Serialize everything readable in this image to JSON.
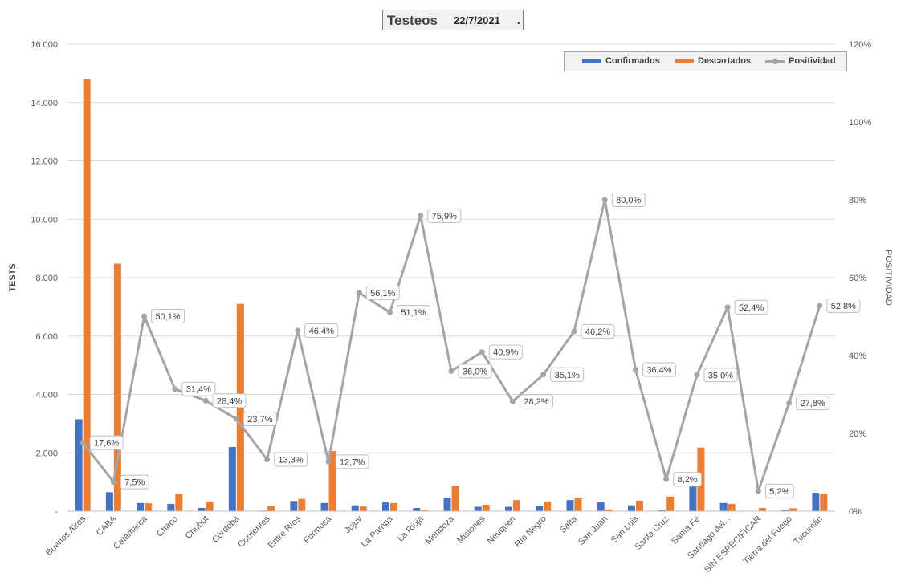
{
  "title": {
    "main": "Testeos",
    "date": "22/7/2021",
    "dot": "."
  },
  "legend": {
    "s1": "Confirmados",
    "s2": "Descartados",
    "s3": "Positividad"
  },
  "colors": {
    "confirmados": "#4472c4",
    "descartados": "#ed7d31",
    "positividad": "#a5a5a5"
  },
  "chart_data": {
    "type": "bar",
    "title": "Testeos 22/7/2021",
    "ylabel": "TESTS",
    "y2label": "POSITIVIDAD",
    "ylim": [
      0,
      16000
    ],
    "y2lim": [
      0,
      120
    ],
    "y_ticks": [
      "-",
      "2.000",
      "4.000",
      "6.000",
      "8.000",
      "10.000",
      "12.000",
      "14.000",
      "16.000"
    ],
    "y2_ticks": [
      "0%",
      "20%",
      "40%",
      "60%",
      "80%",
      "100%",
      "120%"
    ],
    "grid": true,
    "legend_position": "top-right",
    "categories": [
      "Buenos Aires",
      "CABA",
      "Catamarca",
      "Chaco",
      "Chubut",
      "Córdoba",
      "Corrientes",
      "Entre Ríos",
      "Formosa",
      "Jujuy",
      "La Pampa",
      "La Rioja",
      "Mendoza",
      "Misiones",
      "Neuquén",
      "Río Negro",
      "Salta",
      "San Juan",
      "San Luis",
      "Santa Cruz",
      "Santa Fe",
      "Santiago del...",
      "SIN ESPECIFICAR",
      "Tierra del Fuego",
      "Tucumán"
    ],
    "series": [
      {
        "name": "Confirmados",
        "axis": "left",
        "values": [
          3150,
          650,
          280,
          250,
          110,
          2200,
          20,
          350,
          280,
          200,
          300,
          110,
          470,
          150,
          150,
          170,
          380,
          300,
          200,
          40,
          900,
          280,
          10,
          40,
          630
        ]
      },
      {
        "name": "Descartados",
        "axis": "left",
        "values": [
          14800,
          8480,
          270,
          580,
          330,
          7100,
          170,
          420,
          2060,
          160,
          280,
          40,
          870,
          220,
          380,
          330,
          440,
          60,
          360,
          500,
          2180,
          250,
          110,
          100,
          580
        ]
      },
      {
        "name": "Positividad",
        "axis": "right",
        "type": "line",
        "values": [
          17.6,
          7.5,
          50.1,
          31.4,
          28.4,
          23.7,
          13.3,
          46.4,
          12.7,
          56.1,
          51.1,
          75.9,
          36.0,
          40.9,
          28.2,
          35.1,
          46.2,
          80.0,
          36.4,
          8.2,
          35.0,
          52.4,
          5.2,
          27.8,
          52.8
        ],
        "labels": [
          "17,6%",
          "7,5%",
          "50,1%",
          "31,4%",
          "28,4%",
          "23,7%",
          "13,3%",
          "46,4%",
          "12,7%",
          "56,1%",
          "51,1%",
          "75,9%",
          "36,0%",
          "40,9%",
          "28,2%",
          "35,1%",
          "46,2%",
          "80,0%",
          "36,4%",
          "8,2%",
          "35,0%",
          "52,4%",
          "5,2%",
          "27,8%",
          "52,8%"
        ]
      }
    ]
  }
}
